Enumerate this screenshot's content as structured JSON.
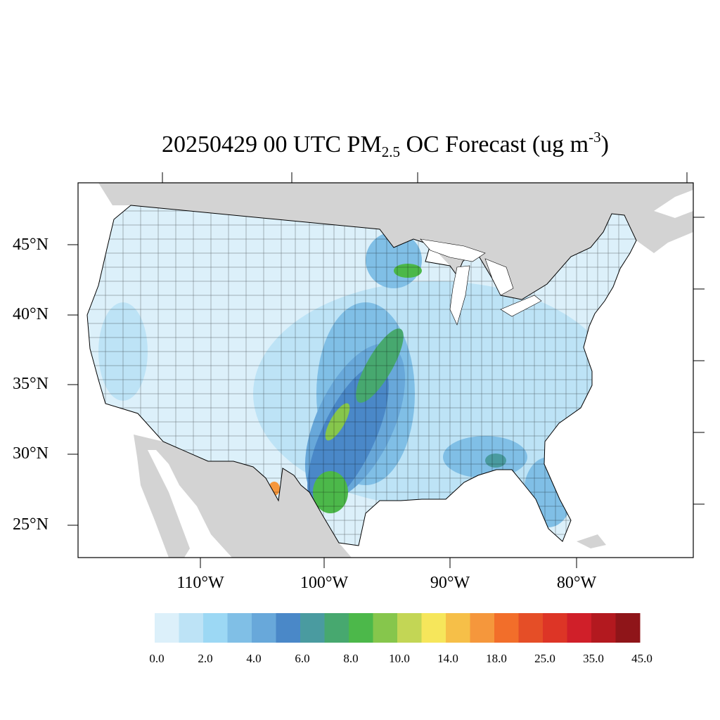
{
  "title": {
    "prefix": "20250429 00 UTC PM",
    "subscript": "2.5",
    "middle": " OC Forecast (ug m",
    "superscript": "-3",
    "suffix": ")"
  },
  "map": {
    "lat_labels": [
      "45°N",
      "40°N",
      "35°N",
      "30°N",
      "25°N"
    ],
    "lon_labels": [
      "110°W",
      "100°W",
      "90°W",
      "80°W"
    ],
    "land_color": "#d3d3d3",
    "water_color": "#ffffff",
    "boundary_color": "#000000"
  },
  "colorbar": {
    "colors": [
      "#dcf0fa",
      "#bde3f6",
      "#9cd8f4",
      "#80bfe6",
      "#68a8da",
      "#4a88c8",
      "#4a9ba0",
      "#47a86f",
      "#4cb84a",
      "#86c64c",
      "#c3d655",
      "#f6e65b",
      "#f6bf48",
      "#f5973c",
      "#f26e2a",
      "#e54e27",
      "#dd3526",
      "#d01f29",
      "#b3191f",
      "#8f1519"
    ],
    "labels": [
      "0.0",
      "2.0",
      "4.0",
      "6.0",
      "8.0",
      "10.0",
      "14.0",
      "18.0",
      "25.0",
      "35.0",
      "45.0"
    ]
  }
}
